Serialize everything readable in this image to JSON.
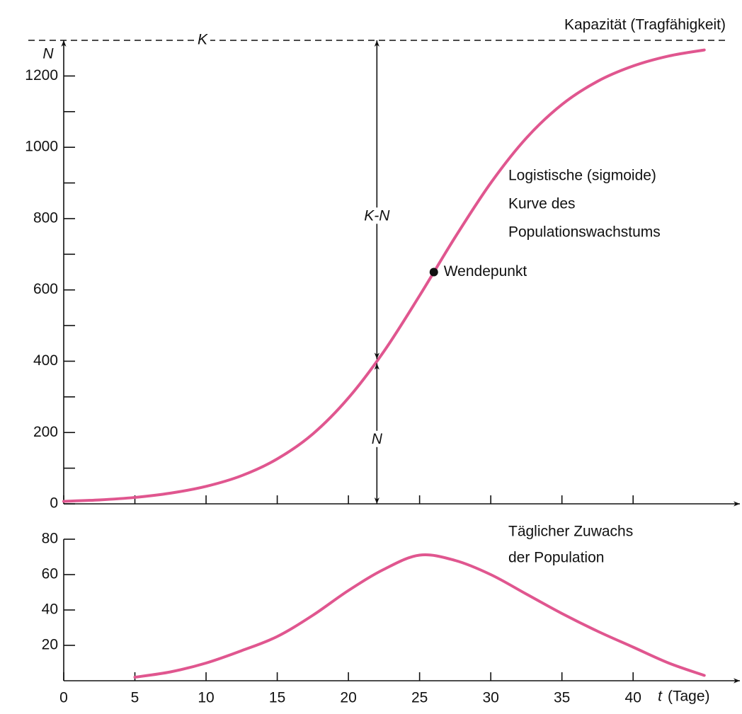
{
  "chart_data": [
    {
      "type": "line",
      "ylabel": "N",
      "x": [
        0,
        2.5,
        5,
        7.5,
        10,
        12.5,
        15,
        17.5,
        20,
        22.5,
        25,
        27.5,
        30,
        32.5,
        35,
        37.5,
        40,
        42.5,
        45
      ],
      "values": [
        7,
        11,
        18,
        30,
        49,
        79,
        126,
        196,
        297,
        428,
        584,
        748,
        900,
        1026,
        1120,
        1185,
        1228,
        1256,
        1273
      ],
      "color": "#e0568f",
      "xlim": [
        0,
        47.5
      ],
      "ylim": [
        0,
        1300
      ],
      "xticks": [
        0,
        5,
        10,
        15,
        20,
        25,
        30,
        35,
        40
      ],
      "xtick_labels": false,
      "yticks": [
        0,
        200,
        400,
        600,
        800,
        1000,
        1200
      ],
      "yminor_ticks": [
        100,
        300,
        500,
        700,
        900,
        1100
      ],
      "capacity": {
        "value": 1300,
        "label": "K",
        "note": "Kapazität (Tragfähigkeit)"
      },
      "marker": {
        "x": 22,
        "y": 400,
        "upper_label": "K-N",
        "lower_label": "N"
      },
      "inflection": {
        "x": 26,
        "y": 650,
        "label": "Wendepunkt"
      },
      "curve_label": [
        "Logistische (sigmoide)",
        "Kurve des",
        "Populationswachstums"
      ]
    },
    {
      "type": "line",
      "x": [
        5,
        7.5,
        10,
        12.5,
        15,
        17.5,
        20,
        22.5,
        25,
        27.5,
        30,
        32.5,
        35,
        37.5,
        40,
        42.5,
        45
      ],
      "values": [
        2,
        5,
        10,
        17,
        25,
        37,
        51,
        63,
        71,
        68,
        60,
        49,
        38,
        28,
        19,
        10,
        3
      ],
      "color": "#e0568f",
      "xlim": [
        0,
        47.5
      ],
      "ylim": [
        0,
        80
      ],
      "xticks": [
        0,
        5,
        10,
        15,
        20,
        25,
        30,
        35,
        40
      ],
      "xtick_labels": true,
      "yticks": [
        20,
        40,
        60,
        80
      ],
      "xlabel": {
        "symbol": "t",
        "text": "(Tage)"
      },
      "curve_label": [
        "Täglicher Zuwachs",
        "der Population"
      ]
    }
  ]
}
